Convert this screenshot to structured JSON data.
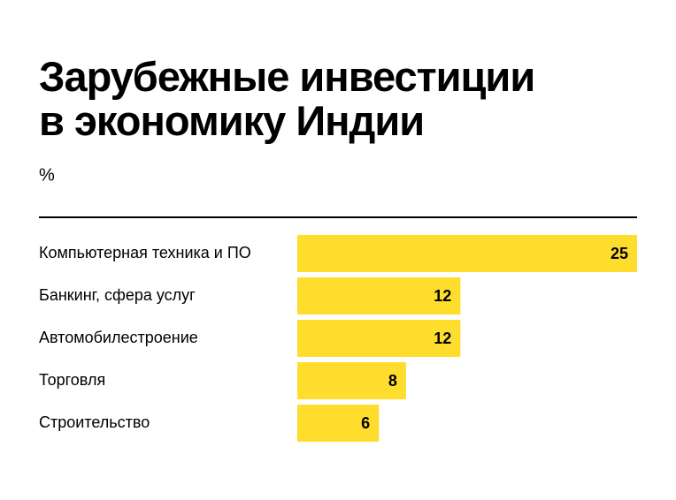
{
  "chart_data": {
    "type": "barh",
    "title": "Зарубежные инвестиции\nв экономику Индии",
    "subtitle": "%",
    "categories": [
      "Компьютерная техника и ПО",
      "Банкинг, сфера услуг",
      "Автомобилестроение",
      "Торговля",
      "Строительство"
    ],
    "values": [
      25,
      12,
      12,
      8,
      6
    ],
    "color": "#ffdd2d"
  }
}
